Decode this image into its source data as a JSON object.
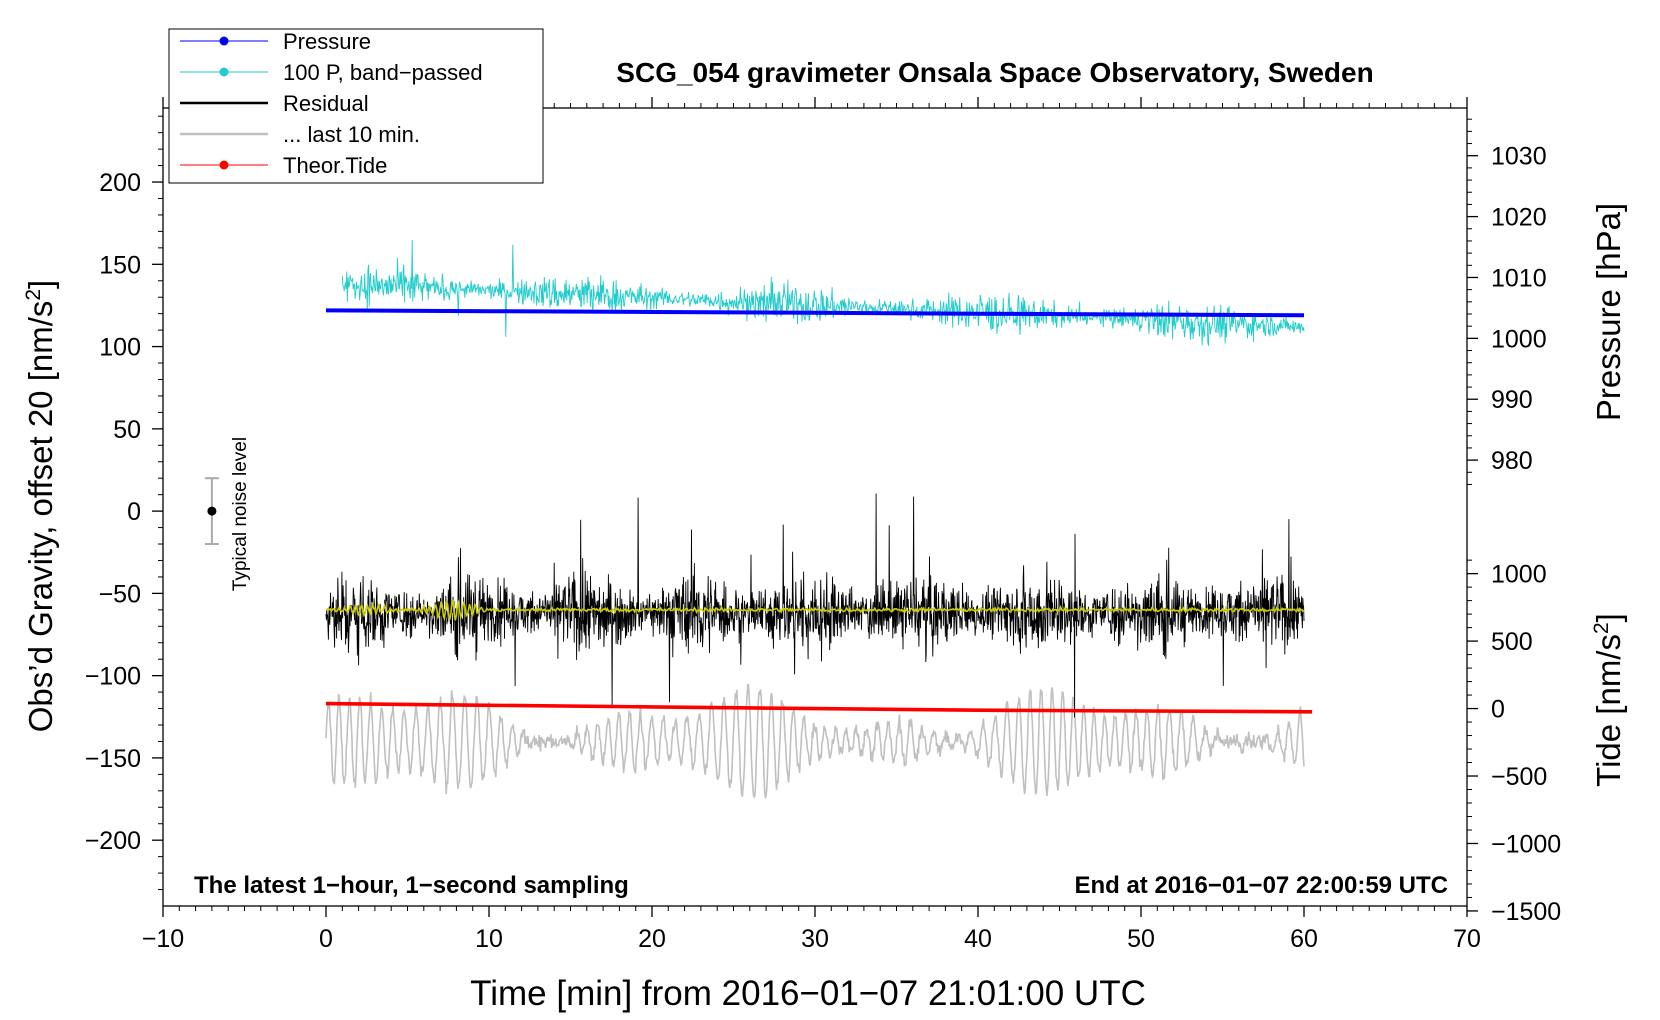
{
  "chart_data": {
    "type": "line",
    "title": "SCG_054 gravimeter Onsala Space Observatory, Sweden",
    "xlabel": "Time [min] from 2016−01−07 21:01:00 UTC",
    "xlim": [
      -10,
      70
    ],
    "x_ticks": [
      -10,
      0,
      10,
      20,
      30,
      40,
      50,
      60,
      70
    ],
    "x_tick_labels": [
      "−10",
      "0",
      "10",
      "20",
      "30",
      "40",
      "50",
      "60",
      "70"
    ],
    "left_axis": {
      "label_main": "Obs’d Gravity, offset 20 [nm/s",
      "label_sup": "2",
      "label_end": "]",
      "ylim": [
        -240,
        245
      ],
      "ticks": [
        200,
        150,
        100,
        50,
        0,
        -50,
        -100,
        -150,
        -200
      ],
      "tick_labels": [
        "200",
        "150",
        "100",
        "50",
        "0",
        "−50",
        "−100",
        "−150",
        "−200"
      ]
    },
    "pressure_axis": {
      "label": "Pressure [hPa]",
      "ticks": [
        1030,
        1020,
        1010,
        1000,
        990,
        980
      ],
      "tick_labels": [
        "1030",
        "1020",
        "1010",
        "1000",
        "990",
        "980"
      ],
      "scale_note": "1000 hPa at gravity 105, 10 hPa per 37 nm/s2"
    },
    "tide_axis": {
      "label_main": "Tide [nm/s",
      "label_sup": "2",
      "label_end": "]",
      "ticks": [
        1000,
        500,
        0,
        -500,
        -1000,
        -1500
      ],
      "tick_labels": [
        "1000",
        "500",
        "0",
        "−500",
        "−1000",
        "−1500"
      ],
      "scale_note": "0 at gravity -120, 500 per 41 nm/s2"
    },
    "legend": {
      "position": "top-left",
      "entries": [
        {
          "label": "Pressure",
          "color": "#0000ff",
          "marker": true
        },
        {
          "label": "100 P, band−passed",
          "color": "#22cccc",
          "marker": true
        },
        {
          "label": "Residual",
          "color": "#000000",
          "marker": false
        },
        {
          "label": "... last 10 min.",
          "color": "#c0c0c0",
          "marker": false
        },
        {
          "label": "Theor.Tide",
          "color": "#ff0000",
          "marker": true
        }
      ]
    },
    "series": [
      {
        "name": "Pressure",
        "color": "#0000ff",
        "x": [
          0,
          10,
          20,
          30,
          40,
          50,
          60
        ],
        "y": [
          122,
          121.5,
          121,
          120.5,
          120,
          119.5,
          119
        ]
      },
      {
        "name": "100 P, band−passed",
        "color": "#22cccc",
        "x_range": [
          1,
          60
        ],
        "y_start": 138,
        "y_end": 112,
        "amplitude": 12
      },
      {
        "name": "Residual",
        "color": "#000000",
        "x_range": [
          0,
          60
        ],
        "y_center": -62,
        "amplitude": 22
      },
      {
        "name": "Residual smoothed",
        "color": "#cccc00",
        "x_range": [
          0,
          60
        ],
        "y_center": -60
      },
      {
        "name": "... last 10 min.",
        "color": "#c0c0c0",
        "x_range": [
          0,
          60
        ],
        "y_center": -140,
        "amplitude": 30
      },
      {
        "name": "Theor.Tide",
        "color": "#ff0000",
        "x": [
          0,
          10,
          20,
          30,
          40,
          50,
          60.5
        ],
        "y": [
          -117,
          -118,
          -119,
          -120,
          -121,
          -121.5,
          -122
        ]
      }
    ],
    "noise_bar": {
      "x": -7,
      "y": 0,
      "low": -20,
      "high": 20,
      "label": "Typical noise level"
    },
    "annotations": [
      {
        "text": "The latest 1−hour, 1−second sampling",
        "position": "bottom-left"
      },
      {
        "text": "End at 2016−01−07 22:00:59 UTC",
        "position": "bottom-right"
      }
    ]
  }
}
